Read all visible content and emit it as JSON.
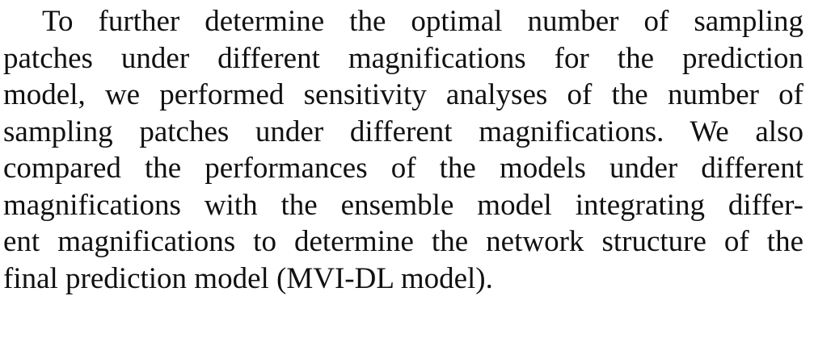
{
  "paragraph": {
    "lines": [
      "To further determine the optimal number of sampling",
      "patches under different magnifications for the prediction",
      "model, we performed sensitivity analyses of the number of",
      "sampling patches under different magnifications. We also",
      "compared the performances of the models under different",
      "magnifications with the ensemble model integrating differ-",
      "ent magnifications to determine the network structure of the",
      "final prediction model (MVI-DL model)."
    ]
  }
}
